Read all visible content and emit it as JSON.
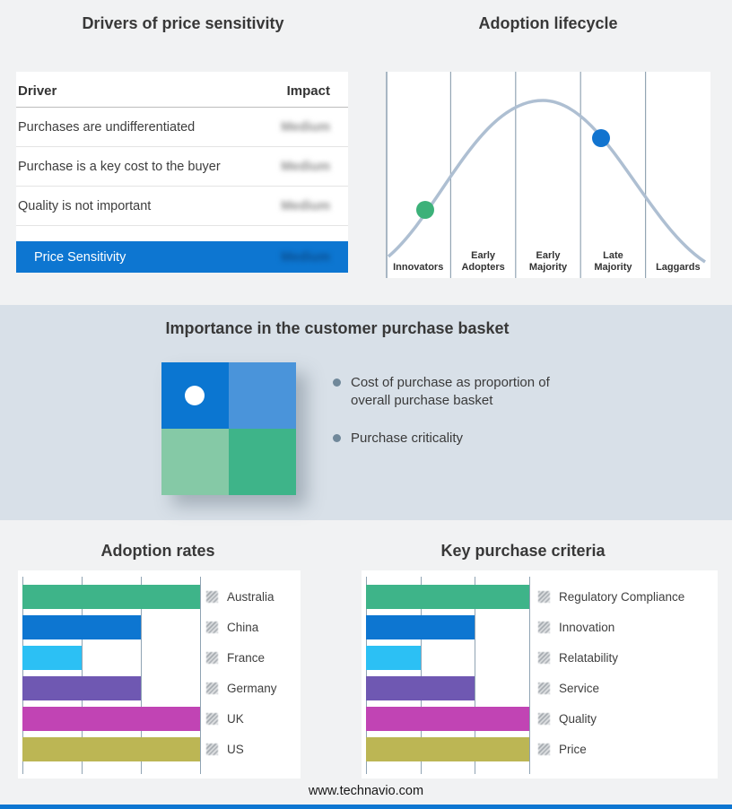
{
  "page": {
    "footer_url": "www.technavio.com",
    "accent_color": "#0d76d1",
    "band_color": "#d8e0e8"
  },
  "drivers": {
    "title": "Drivers of price sensitivity",
    "col_driver": "Driver",
    "col_impact": "Impact",
    "rows": [
      {
        "driver": "Purchases are undifferentiated",
        "impact": "Medium"
      },
      {
        "driver": "Purchase is a key cost to the buyer",
        "impact": "Medium"
      },
      {
        "driver": "Quality is not important",
        "impact": "Medium"
      }
    ],
    "highlight": {
      "label": "Price Sensitivity",
      "impact": "Medium"
    },
    "impact_blurred": true
  },
  "lifecycle": {
    "title": "Adoption lifecycle",
    "stages": [
      "Innovators",
      "Early Adopters",
      "Early Majority",
      "Late Majority",
      "Laggards"
    ],
    "curve_color": "#aebfd2",
    "markers": [
      {
        "name": "early-stage-marker",
        "stage": "Innovators",
        "color": "#3cb179"
      },
      {
        "name": "late-stage-marker",
        "stage": "Late Majority",
        "color": "#1274cf"
      }
    ]
  },
  "importance": {
    "title": "Importance in the customer purchase basket",
    "bullets": [
      "Cost of purchase as proportion of overall purchase basket",
      "Purchase criticality"
    ],
    "matrix_colors": {
      "top_left": "#0b76d1",
      "top_right": "#4a94da",
      "bottom_left": "#85c9a6",
      "bottom_right": "#3eb489"
    }
  },
  "footer": {
    "url": "www.technavio.com"
  },
  "chart_data": [
    {
      "type": "table",
      "title": "Drivers of price sensitivity",
      "columns": [
        "Driver",
        "Impact"
      ],
      "rows": [
        [
          "Purchases are undifferentiated",
          "Medium"
        ],
        [
          "Purchase is a key cost to the buyer",
          "Medium"
        ],
        [
          "Quality is not important",
          "Medium"
        ],
        [
          "Price Sensitivity",
          "Medium"
        ]
      ],
      "note": "Impact values are shown blurred in the source image"
    },
    {
      "type": "line",
      "title": "Adoption lifecycle",
      "categories": [
        "Innovators",
        "Early Adopters",
        "Early Majority",
        "Late Majority",
        "Laggards"
      ],
      "description": "Bell curve across the five adoption stages; green marker on the rising slope near Innovators/Early Adopters, blue marker on the falling slope at Late Majority",
      "markers": [
        {
          "stage": "Innovators",
          "color": "#3cb179"
        },
        {
          "stage": "Late Majority",
          "color": "#1274cf"
        }
      ],
      "grid": true,
      "legend_position": "none"
    },
    {
      "type": "bar",
      "title": "Adoption rates",
      "orientation": "horizontal",
      "categories": [
        "Australia",
        "China",
        "France",
        "Germany",
        "UK",
        "US"
      ],
      "values": [
        3,
        2,
        1,
        2,
        3,
        3
      ],
      "xlim": [
        0,
        3
      ],
      "grid": true,
      "colors": [
        "#3eb489",
        "#0d76d1",
        "#2cc0f4",
        "#6f58b2",
        "#c144b4",
        "#bcb654"
      ],
      "legend_position": "right"
    },
    {
      "type": "bar",
      "title": "Key purchase criteria",
      "orientation": "horizontal",
      "categories": [
        "Regulatory Compliance",
        "Innovation",
        "Relatability",
        "Service",
        "Quality",
        "Price"
      ],
      "values": [
        3,
        2,
        1,
        2,
        3,
        3
      ],
      "xlim": [
        0,
        3
      ],
      "grid": true,
      "colors": [
        "#3eb489",
        "#0d76d1",
        "#2cc0f4",
        "#6f58b2",
        "#c144b4",
        "#bcb654"
      ],
      "legend_position": "right"
    }
  ]
}
